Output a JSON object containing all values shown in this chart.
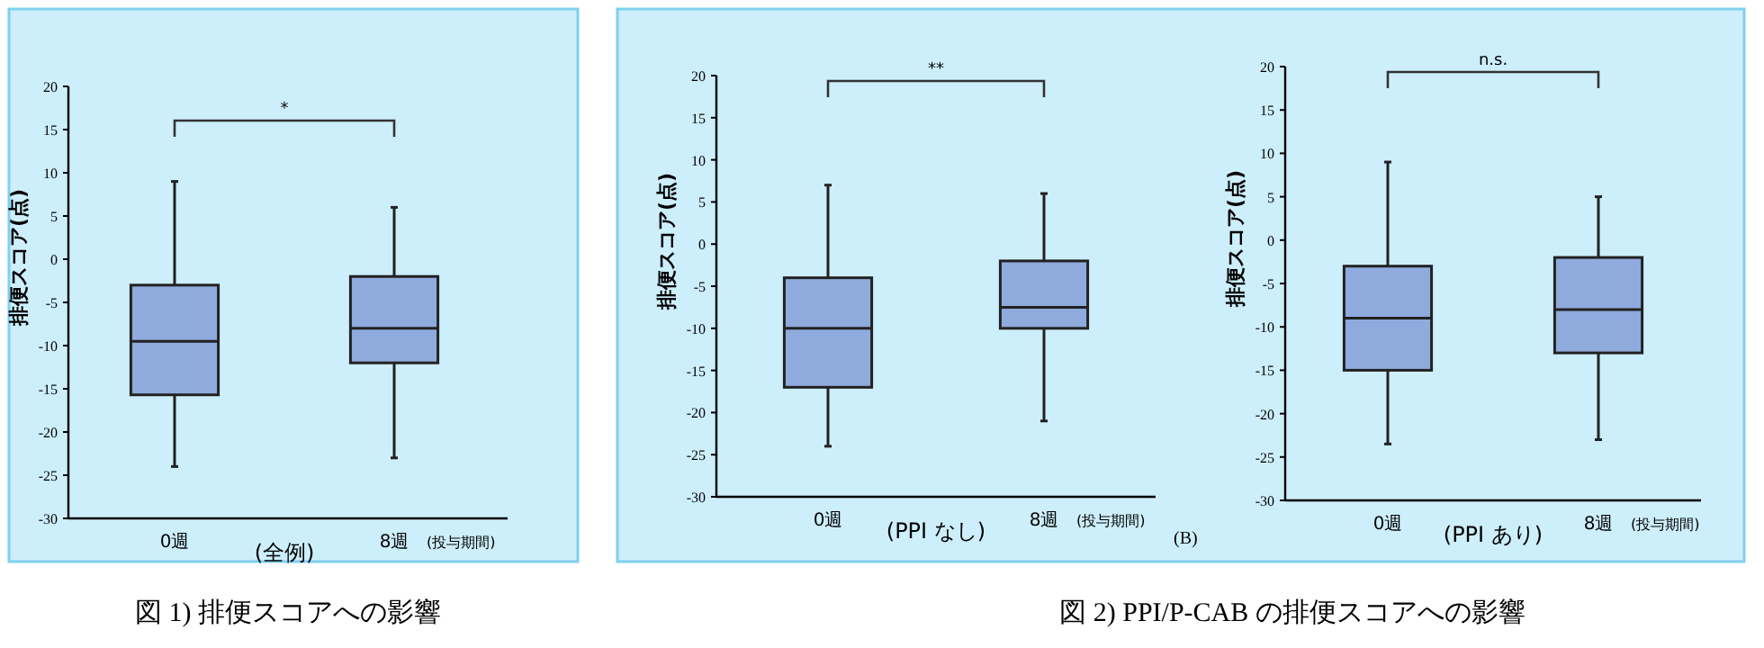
{
  "chart_data": [
    {
      "type": "box",
      "title": "図 1) 排便スコアへの影響",
      "xlabel": "(全例)",
      "ylabel": "排便スコア(点)",
      "categories": [
        "0週",
        "8週"
      ],
      "color": "#8faadc",
      "ylim": [
        -30,
        20
      ],
      "yticks": [
        -30,
        -25,
        -20,
        -15,
        -10,
        -5,
        0,
        5,
        10,
        15,
        20
      ],
      "annotations": [
        "*",
        "(投与期間)"
      ],
      "boxes": [
        {
          "low": -24,
          "q1": -15.7,
          "median": -9.5,
          "q3": -3,
          "high": 9
        },
        {
          "low": -23,
          "q1": -12,
          "median": -8,
          "q3": -2,
          "high": 6
        }
      ]
    },
    {
      "type": "box",
      "title": "図 2) PPI/P-CAB の排便スコアへの影響",
      "xlabel": "(PPI なし)",
      "ylabel": "排便スコア(点)",
      "categories": [
        "0週",
        "8週"
      ],
      "color": "#8faadc",
      "ylim": [
        -30,
        20
      ],
      "yticks": [
        -30,
        -25,
        -20,
        -15,
        -10,
        -5,
        0,
        5,
        10,
        15,
        20
      ],
      "annotations": [
        "**",
        "(投与期間)"
      ],
      "boxes": [
        {
          "low": -24,
          "q1": -17,
          "median": -10,
          "q3": -4,
          "high": 7
        },
        {
          "low": -21,
          "q1": -10,
          "median": -7.5,
          "q3": -2,
          "high": 6
        }
      ]
    },
    {
      "type": "box",
      "xlabel": "(PPI あり)",
      "ylabel": "排便スコア(点)",
      "categories": [
        "0週",
        "8週"
      ],
      "color": "#8faadc",
      "ylim": [
        -30,
        20
      ],
      "yticks": [
        -30,
        -25,
        -20,
        -15,
        -10,
        -5,
        0,
        5,
        10,
        15,
        20
      ],
      "annotations": [
        "n.s.",
        "(投与期間)",
        "(B)"
      ],
      "boxes": [
        {
          "low": -23.5,
          "q1": -15,
          "median": -9,
          "q3": -3,
          "high": 9
        },
        {
          "low": -23,
          "q1": -13,
          "median": -8,
          "q3": -2,
          "high": 5
        }
      ]
    }
  ]
}
